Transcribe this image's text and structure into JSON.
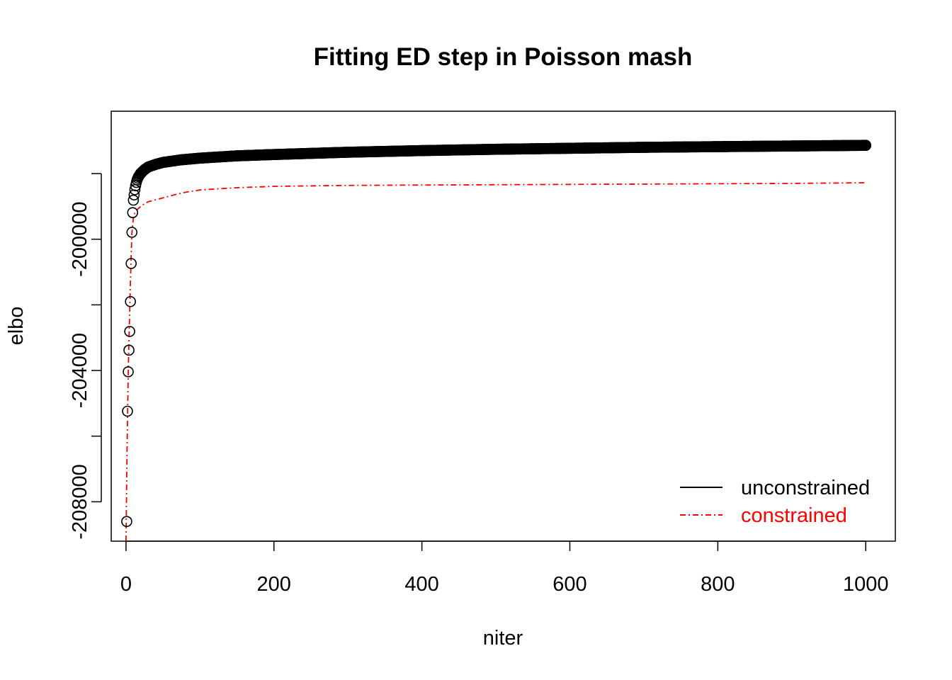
{
  "chart_data": {
    "type": "line",
    "title": "Fitting ED step in Poisson mash",
    "xlabel": "niter",
    "ylabel": "elbo",
    "xlim": [
      -20,
      1040
    ],
    "ylim": [
      -209200,
      -196100
    ],
    "x_ticks": [
      0,
      200,
      400,
      600,
      800,
      1000
    ],
    "y_ticks": [
      -208000,
      -206000,
      -204000,
      -202000,
      -200000,
      -198000
    ],
    "y_tick_labels": [
      "-208000",
      "",
      "-204000",
      "",
      "-200000",
      ""
    ],
    "grid": false,
    "legend_position": "bottom-right",
    "series": [
      {
        "name": "unconstrained",
        "style": "points-open-circle",
        "color": "#000000",
        "x": [
          1,
          2,
          3,
          4,
          5,
          6,
          7,
          8,
          9,
          10,
          11,
          12,
          13,
          14,
          15,
          17,
          20,
          25,
          30,
          40,
          50,
          75,
          100,
          150,
          200,
          300,
          400,
          500,
          600,
          700,
          800,
          900,
          1000
        ],
        "y": [
          -208600,
          -205240,
          -204040,
          -203380,
          -202810,
          -201900,
          -200740,
          -199790,
          -199190,
          -198810,
          -198650,
          -198490,
          -198370,
          -198270,
          -198190,
          -198090,
          -197990,
          -197880,
          -197800,
          -197720,
          -197660,
          -197580,
          -197530,
          -197460,
          -197420,
          -197350,
          -197300,
          -197260,
          -197230,
          -197200,
          -197180,
          -197160,
          -197140
        ]
      },
      {
        "name": "constrained",
        "style": "dot-dash-line",
        "color": "#ff0000",
        "x": [
          0,
          1,
          2,
          3,
          4,
          5,
          6,
          7,
          8,
          10,
          12,
          15,
          20,
          25,
          30,
          40,
          50,
          60,
          70,
          80,
          100,
          150,
          200,
          300,
          400,
          500,
          600,
          700,
          800,
          900,
          1000
        ],
        "y": [
          -209200,
          -207200,
          -205500,
          -204100,
          -203100,
          -202200,
          -201300,
          -200500,
          -199800,
          -199350,
          -199200,
          -199100,
          -199000,
          -198920,
          -198860,
          -198800,
          -198740,
          -198680,
          -198620,
          -198570,
          -198500,
          -198430,
          -198390,
          -198360,
          -198350,
          -198340,
          -198330,
          -198320,
          -198310,
          -198300,
          -198280
        ]
      }
    ]
  }
}
